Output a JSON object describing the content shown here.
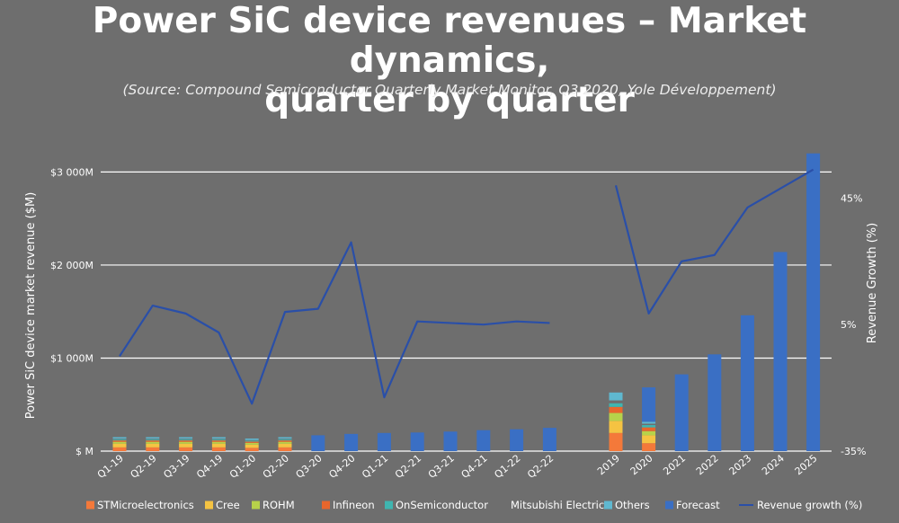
{
  "header": {
    "title": "Power SiC device revenues – Market dynamics, quarter by quarter",
    "title_line1": "Power SiC device revenues – Market dynamics,",
    "title_line2": "quarter by quarter",
    "source": "(Source: Compound Semiconductor Quarterly Market Monitor, Q3 2020, Yole Développement)"
  },
  "chart_data": {
    "type": "bar",
    "stacked": true,
    "categories": [
      "Q1-19",
      "Q2-19",
      "Q3-19",
      "Q4-19",
      "Q1-20",
      "Q2-20",
      "Q3-20",
      "Q4-20",
      "Q1-21",
      "Q2-21",
      "Q3-21",
      "Q4-21",
      "Q1-22",
      "Q2-22",
      "2019",
      "2020",
      "2021",
      "2022",
      "2023",
      "2024",
      "2025"
    ],
    "ylabel": "Power SiC device market revenue ($M)",
    "y2label": "Revenue Growth (%)",
    "ylim": [
      0,
      3400
    ],
    "yticks": [
      0,
      1000,
      2000,
      3000
    ],
    "ytick_labels": [
      "$ M",
      "$1 000M",
      "$2 000M",
      "$3 000M"
    ],
    "y2lim": [
      -35,
      65
    ],
    "y2ticks": [
      -35,
      5,
      45
    ],
    "y2tick_labels": [
      "-35%",
      "5%",
      "45%"
    ],
    "grid": true,
    "legend_position": "bottom",
    "series": [
      {
        "name": "STMicroelectronics",
        "color": "#f4793a",
        "values": [
          40,
          40,
          40,
          40,
          35,
          40,
          null,
          null,
          null,
          null,
          null,
          null,
          null,
          null,
          195,
          85,
          null,
          null,
          null,
          null,
          null
        ]
      },
      {
        "name": "Cree",
        "color": "#f5c342",
        "values": [
          40,
          40,
          40,
          40,
          35,
          40,
          null,
          null,
          null,
          null,
          null,
          null,
          null,
          null,
          130,
          85,
          null,
          null,
          null,
          null,
          null
        ]
      },
      {
        "name": "ROHM",
        "color": "#b7d24a",
        "values": [
          20,
          20,
          20,
          20,
          18,
          20,
          null,
          null,
          null,
          null,
          null,
          null,
          null,
          null,
          85,
          45,
          null,
          null,
          null,
          null,
          null
        ]
      },
      {
        "name": "Infineon",
        "color": "#e8662c",
        "values": [
          15,
          15,
          15,
          15,
          14,
          15,
          null,
          null,
          null,
          null,
          null,
          null,
          null,
          null,
          65,
          40,
          null,
          null,
          null,
          null,
          null
        ]
      },
      {
        "name": "OnSemiconductor",
        "color": "#3fb5b0",
        "values": [
          10,
          10,
          10,
          10,
          10,
          10,
          null,
          null,
          null,
          null,
          null,
          null,
          null,
          null,
          40,
          25,
          null,
          null,
          null,
          null,
          null
        ]
      },
      {
        "name": "Mitsubishi Electric",
        "color": "#6e6e6e",
        "values": [
          8,
          8,
          8,
          8,
          7,
          8,
          null,
          null,
          null,
          null,
          null,
          null,
          null,
          null,
          30,
          15,
          null,
          null,
          null,
          null,
          null
        ]
      },
      {
        "name": "Others",
        "color": "#5fb8d0",
        "values": [
          17,
          17,
          17,
          17,
          16,
          17,
          null,
          null,
          null,
          null,
          null,
          null,
          null,
          null,
          85,
          20,
          null,
          null,
          null,
          null,
          null
        ]
      },
      {
        "name": "Forecast",
        "color": "#3a6fc4",
        "values": [
          null,
          null,
          null,
          null,
          null,
          null,
          170,
          185,
          195,
          200,
          210,
          225,
          235,
          250,
          null,
          370,
          825,
          1040,
          1460,
          2140,
          3200
        ]
      }
    ],
    "line_series": {
      "name": "Revenue growth (%)",
      "color": "#2a4fa8",
      "values": [
        -5,
        11,
        8.5,
        2.5,
        -20,
        9,
        10,
        31,
        -18,
        6,
        5.5,
        5,
        6,
        5.5,
        49,
        8.5,
        25,
        27,
        42,
        48,
        54
      ]
    }
  },
  "legend": {
    "items": [
      {
        "label": "STMicroelectronics",
        "color": "#f4793a",
        "kind": "swatch"
      },
      {
        "label": "Cree",
        "color": "#f5c342",
        "kind": "swatch"
      },
      {
        "label": "ROHM",
        "color": "#b7d24a",
        "kind": "swatch"
      },
      {
        "label": "Infineon",
        "color": "#e8662c",
        "kind": "swatch"
      },
      {
        "label": "OnSemiconductor",
        "color": "#3fb5b0",
        "kind": "swatch"
      },
      {
        "label": "Mitsubishi Electric",
        "color": "#6e6e6e",
        "kind": "swatch"
      },
      {
        "label": "Others",
        "color": "#5fb8d0",
        "kind": "swatch"
      },
      {
        "label": "Forecast",
        "color": "#3a6fc4",
        "kind": "swatch"
      },
      {
        "label": "Revenue growth (%)",
        "color": "#2a4fa8",
        "kind": "line"
      }
    ]
  }
}
